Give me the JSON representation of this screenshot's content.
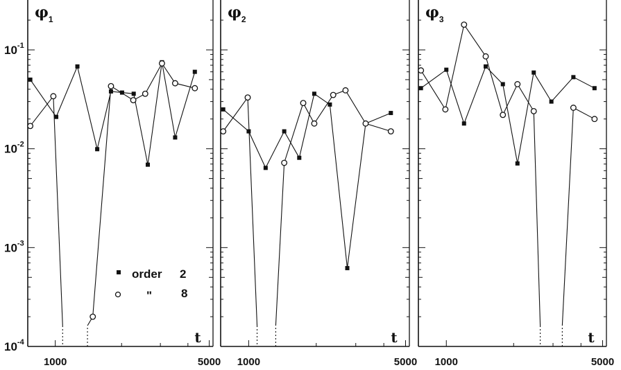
{
  "chart_data": [
    {
      "type": "line",
      "title": "φ₁",
      "title_symbol": "φ",
      "title_sub": "1",
      "xlabel": "t",
      "x_scale": "log",
      "y_scale": "log",
      "ylim": [
        0.0001,
        0.25
      ],
      "xlim": [
        750,
        5200
      ],
      "xticks": [
        1000,
        5000
      ],
      "grid": false,
      "legend": {
        "placement": "bottom-center",
        "entries": [
          {
            "marker": "filled-square",
            "label": "order",
            "value": "2"
          },
          {
            "marker": "open-circle",
            "label": "\"",
            "value": "8"
          }
        ]
      },
      "series": [
        {
          "label": "2",
          "marker": "filled-square",
          "x": [
            770,
            1010,
            1260,
            1550,
            1790,
            2010,
            2270,
            2630,
            3050,
            3500,
            4300
          ],
          "y": [
            0.05,
            0.021,
            0.068,
            0.0099,
            0.038,
            0.037,
            0.036,
            0.0069,
            0.075,
            0.013,
            0.06
          ],
          "dropouts_to_axis": []
        },
        {
          "label": "8",
          "marker": "open-circle",
          "x": [
            770,
            980,
            1480,
            1790,
            2260,
            2560,
            3050,
            3500,
            4300
          ],
          "y": [
            0.017,
            0.034,
            0.0002,
            0.043,
            0.031,
            0.036,
            0.073,
            0.046,
            0.041
          ],
          "dropouts_to_axis": [
            {
              "from_x": 980,
              "to_x": 1080
            },
            {
              "from_x": 1400,
              "to_x": 1480
            }
          ]
        }
      ]
    },
    {
      "type": "line",
      "title": "φ₂",
      "title_symbol": "φ",
      "title_sub": "2",
      "xlabel": "t",
      "x_scale": "log",
      "y_scale": "log",
      "ylim": [
        0.0001,
        0.25
      ],
      "xlim": [
        750,
        5200
      ],
      "xticks": [
        1000,
        5000
      ],
      "grid": false,
      "series": [
        {
          "label": "2",
          "marker": "filled-square",
          "x": [
            770,
            1000,
            1190,
            1440,
            1680,
            1960,
            2300,
            2750,
            3320,
            4300
          ],
          "y": [
            0.025,
            0.015,
            0.0064,
            0.015,
            0.0081,
            0.036,
            0.028,
            0.00062,
            0.018,
            0.023
          ],
          "dropouts_to_axis": []
        },
        {
          "label": "8",
          "marker": "open-circle",
          "x": [
            770,
            990,
            1440,
            1750,
            1960,
            2380,
            2700,
            3320,
            4300
          ],
          "y": [
            0.015,
            0.033,
            0.0072,
            0.029,
            0.018,
            0.035,
            0.039,
            0.018,
            0.015
          ],
          "dropouts_to_axis": [
            {
              "from_x": 990,
              "to_x": 1090
            },
            {
              "from_x": 1320,
              "to_x": 1440
            }
          ]
        }
      ]
    },
    {
      "type": "line",
      "title": "φ₃",
      "title_symbol": "φ",
      "title_sub": "3",
      "xlabel": "t",
      "x_scale": "log",
      "y_scale": "log",
      "ylim": [
        0.0001,
        0.25
      ],
      "xlim": [
        750,
        5200
      ],
      "xticks": [
        1000,
        5000
      ],
      "grid": false,
      "series": [
        {
          "label": "2",
          "marker": "filled-square",
          "x": [
            770,
            1000,
            1200,
            1500,
            1790,
            2080,
            2460,
            2950,
            3700,
            4600
          ],
          "y": [
            0.041,
            0.063,
            0.018,
            0.068,
            0.045,
            0.0071,
            0.059,
            0.03,
            0.053,
            0.041
          ],
          "dropouts_to_axis": []
        },
        {
          "label": "8",
          "marker": "open-circle",
          "x": [
            770,
            990,
            1200,
            1500,
            1790,
            2080,
            2460,
            3700,
            4600
          ],
          "y": [
            0.062,
            0.025,
            0.18,
            0.086,
            0.022,
            0.045,
            0.024,
            0.026,
            0.02
          ],
          "dropouts_to_axis": [
            {
              "from_x": 2460,
              "to_x": 2630
            },
            {
              "from_x": 3300,
              "to_x": 3700
            }
          ]
        }
      ]
    }
  ],
  "axes": {
    "y_tick_labels": [
      {
        "base": "10",
        "exp": "-1",
        "value": 0.1
      },
      {
        "base": "10",
        "exp": "-2",
        "value": 0.01
      },
      {
        "base": "10",
        "exp": "-3",
        "value": 0.001
      },
      {
        "base": "10",
        "exp": "-4",
        "value": 0.0001
      }
    ],
    "x_tick_labels": [
      "1000",
      "5000"
    ],
    "x_axis_var": "t"
  },
  "legend": {
    "row1": {
      "label": "order",
      "value": "2"
    },
    "row2": {
      "label": "\"",
      "value": "8"
    }
  },
  "colors": {
    "ink": "#111111",
    "background": "#ffffff"
  }
}
